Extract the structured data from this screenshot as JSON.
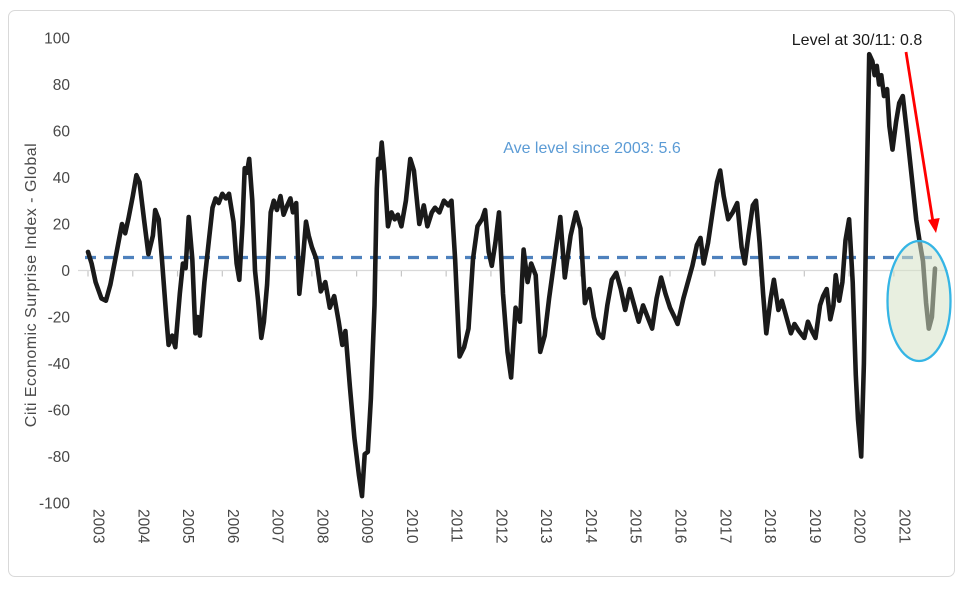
{
  "figure": {
    "background": "#FFFFFF",
    "border_color": "#D9D9D9"
  },
  "annotations": {
    "level_label": "Level at 30/11: 0.8",
    "level_label_color": "#1A1A1A",
    "avg_label": "Ave level since 2003: 5.6",
    "avg_label_color": "#5B9BD5",
    "arrow_color": "#FF0000",
    "highlight_ellipse": {
      "stroke_color": "#35B5E5",
      "fill_color_rgba": "rgba(213,226,198,0.55)"
    }
  },
  "chart_data": {
    "type": "line",
    "title": "",
    "xlabel": "",
    "ylabel": "Citi Economic Surprise Index - Global",
    "ylim": [
      -100,
      100
    ],
    "xlim": [
      2003,
      2022
    ],
    "grid": "zero-line-only",
    "legend": "none",
    "y_ticks": [
      100,
      80,
      60,
      40,
      20,
      0,
      -20,
      -40,
      -60,
      -80,
      -100
    ],
    "x_ticks": [
      2003,
      2004,
      2005,
      2006,
      2007,
      2008,
      2009,
      2010,
      2011,
      2012,
      2013,
      2014,
      2015,
      2016,
      2017,
      2018,
      2019,
      2020,
      2021
    ],
    "average_line": {
      "label": "Ave level since 2003",
      "value": 5.6,
      "color": "#4E81BD",
      "style": "dashed"
    },
    "final_point": {
      "date": "30/11",
      "value": 0.8
    },
    "series": [
      {
        "name": "Citi Economic Surprise Index - Global",
        "color": "#1A1A1A",
        "points": [
          [
            2003.0,
            8
          ],
          [
            2003.08,
            3
          ],
          [
            2003.17,
            -5
          ],
          [
            2003.3,
            -12
          ],
          [
            2003.4,
            -13
          ],
          [
            2003.5,
            -6
          ],
          [
            2003.6,
            4
          ],
          [
            2003.7,
            14
          ],
          [
            2003.76,
            20
          ],
          [
            2003.83,
            16
          ],
          [
            2003.9,
            22
          ],
          [
            2004.0,
            32
          ],
          [
            2004.08,
            41
          ],
          [
            2004.15,
            38
          ],
          [
            2004.25,
            22
          ],
          [
            2004.35,
            7
          ],
          [
            2004.45,
            15
          ],
          [
            2004.5,
            26
          ],
          [
            2004.58,
            22
          ],
          [
            2004.65,
            5
          ],
          [
            2004.75,
            -20
          ],
          [
            2004.8,
            -32
          ],
          [
            2004.88,
            -28
          ],
          [
            2004.95,
            -33
          ],
          [
            2005.05,
            -10
          ],
          [
            2005.12,
            3
          ],
          [
            2005.18,
            1
          ],
          [
            2005.25,
            23
          ],
          [
            2005.33,
            5
          ],
          [
            2005.4,
            -27
          ],
          [
            2005.45,
            -20
          ],
          [
            2005.5,
            -28
          ],
          [
            2005.6,
            -5
          ],
          [
            2005.7,
            13
          ],
          [
            2005.78,
            27
          ],
          [
            2005.85,
            31
          ],
          [
            2005.92,
            29
          ],
          [
            2006.0,
            33
          ],
          [
            2006.08,
            31
          ],
          [
            2006.15,
            33
          ],
          [
            2006.25,
            21
          ],
          [
            2006.32,
            3
          ],
          [
            2006.38,
            -4
          ],
          [
            2006.45,
            20
          ],
          [
            2006.5,
            44
          ],
          [
            2006.55,
            42
          ],
          [
            2006.6,
            48
          ],
          [
            2006.67,
            30
          ],
          [
            2006.73,
            0
          ],
          [
            2006.8,
            -13
          ],
          [
            2006.87,
            -29
          ],
          [
            2006.93,
            -22
          ],
          [
            2007.0,
            -6
          ],
          [
            2007.08,
            25
          ],
          [
            2007.15,
            30
          ],
          [
            2007.22,
            26
          ],
          [
            2007.3,
            32
          ],
          [
            2007.37,
            24
          ],
          [
            2007.45,
            28
          ],
          [
            2007.52,
            31
          ],
          [
            2007.58,
            25
          ],
          [
            2007.65,
            29
          ],
          [
            2007.72,
            -10
          ],
          [
            2007.8,
            5
          ],
          [
            2007.87,
            21
          ],
          [
            2007.93,
            15
          ],
          [
            2008.0,
            10
          ],
          [
            2008.1,
            5
          ],
          [
            2008.2,
            -9
          ],
          [
            2008.3,
            -5
          ],
          [
            2008.4,
            -16
          ],
          [
            2008.5,
            -11
          ],
          [
            2008.6,
            -22
          ],
          [
            2008.68,
            -32
          ],
          [
            2008.75,
            -26
          ],
          [
            2008.85,
            -50
          ],
          [
            2008.95,
            -72
          ],
          [
            2009.05,
            -88
          ],
          [
            2009.12,
            -97
          ],
          [
            2009.18,
            -79
          ],
          [
            2009.25,
            -78
          ],
          [
            2009.32,
            -55
          ],
          [
            2009.4,
            -15
          ],
          [
            2009.45,
            35
          ],
          [
            2009.48,
            48
          ],
          [
            2009.52,
            44
          ],
          [
            2009.56,
            55
          ],
          [
            2009.62,
            42
          ],
          [
            2009.7,
            19
          ],
          [
            2009.78,
            25
          ],
          [
            2009.85,
            22
          ],
          [
            2009.92,
            24
          ],
          [
            2010.0,
            19
          ],
          [
            2010.1,
            30
          ],
          [
            2010.2,
            48
          ],
          [
            2010.28,
            43
          ],
          [
            2010.4,
            20
          ],
          [
            2010.5,
            28
          ],
          [
            2010.58,
            19
          ],
          [
            2010.68,
            25
          ],
          [
            2010.75,
            27
          ],
          [
            2010.85,
            25
          ],
          [
            2010.95,
            30
          ],
          [
            2011.05,
            28
          ],
          [
            2011.12,
            30
          ],
          [
            2011.2,
            5
          ],
          [
            2011.3,
            -37
          ],
          [
            2011.4,
            -33
          ],
          [
            2011.5,
            -25
          ],
          [
            2011.6,
            5
          ],
          [
            2011.7,
            19
          ],
          [
            2011.8,
            22
          ],
          [
            2011.87,
            26
          ],
          [
            2011.95,
            8
          ],
          [
            2012.02,
            2
          ],
          [
            2012.1,
            12
          ],
          [
            2012.18,
            25
          ],
          [
            2012.27,
            -10
          ],
          [
            2012.37,
            -35
          ],
          [
            2012.45,
            -46
          ],
          [
            2012.55,
            -16
          ],
          [
            2012.65,
            -22
          ],
          [
            2012.73,
            9
          ],
          [
            2012.82,
            -5
          ],
          [
            2012.9,
            3
          ],
          [
            2013.0,
            -2
          ],
          [
            2013.1,
            -35
          ],
          [
            2013.2,
            -28
          ],
          [
            2013.3,
            -12
          ],
          [
            2013.42,
            5
          ],
          [
            2013.55,
            23
          ],
          [
            2013.65,
            -3
          ],
          [
            2013.78,
            15
          ],
          [
            2013.9,
            25
          ],
          [
            2014.0,
            18
          ],
          [
            2014.1,
            -14
          ],
          [
            2014.2,
            -8
          ],
          [
            2014.3,
            -20
          ],
          [
            2014.4,
            -27
          ],
          [
            2014.5,
            -29
          ],
          [
            2014.6,
            -15
          ],
          [
            2014.7,
            -4
          ],
          [
            2014.8,
            -1
          ],
          [
            2014.9,
            -8
          ],
          [
            2015.0,
            -17
          ],
          [
            2015.1,
            -8
          ],
          [
            2015.2,
            -15
          ],
          [
            2015.3,
            -22
          ],
          [
            2015.4,
            -15
          ],
          [
            2015.5,
            -20
          ],
          [
            2015.6,
            -25
          ],
          [
            2015.7,
            -12
          ],
          [
            2015.8,
            -3
          ],
          [
            2015.9,
            -10
          ],
          [
            2016.0,
            -16
          ],
          [
            2016.1,
            -20
          ],
          [
            2016.17,
            -23
          ],
          [
            2016.3,
            -12
          ],
          [
            2016.4,
            -5
          ],
          [
            2016.5,
            2
          ],
          [
            2016.6,
            11
          ],
          [
            2016.68,
            14
          ],
          [
            2016.75,
            3
          ],
          [
            2016.85,
            12
          ],
          [
            2016.95,
            25
          ],
          [
            2017.05,
            38
          ],
          [
            2017.12,
            43
          ],
          [
            2017.2,
            32
          ],
          [
            2017.3,
            22
          ],
          [
            2017.4,
            25
          ],
          [
            2017.5,
            29
          ],
          [
            2017.6,
            10
          ],
          [
            2017.67,
            3
          ],
          [
            2017.75,
            15
          ],
          [
            2017.85,
            28
          ],
          [
            2017.92,
            30
          ],
          [
            2018.0,
            12
          ],
          [
            2018.08,
            -10
          ],
          [
            2018.15,
            -27
          ],
          [
            2018.25,
            -12
          ],
          [
            2018.32,
            -4
          ],
          [
            2018.42,
            -17
          ],
          [
            2018.5,
            -13
          ],
          [
            2018.6,
            -20
          ],
          [
            2018.7,
            -27
          ],
          [
            2018.78,
            -23
          ],
          [
            2018.88,
            -26
          ],
          [
            2019.0,
            -29
          ],
          [
            2019.08,
            -22
          ],
          [
            2019.17,
            -26
          ],
          [
            2019.25,
            -29
          ],
          [
            2019.35,
            -15
          ],
          [
            2019.42,
            -11
          ],
          [
            2019.5,
            -8
          ],
          [
            2019.58,
            -21
          ],
          [
            2019.65,
            -15
          ],
          [
            2019.7,
            -2
          ],
          [
            2019.78,
            -13
          ],
          [
            2019.85,
            -5
          ],
          [
            2019.92,
            13
          ],
          [
            2020.0,
            22
          ],
          [
            2020.08,
            -5
          ],
          [
            2020.15,
            -45
          ],
          [
            2020.2,
            -64
          ],
          [
            2020.27,
            -80
          ],
          [
            2020.33,
            -40
          ],
          [
            2020.38,
            20
          ],
          [
            2020.45,
            93
          ],
          [
            2020.52,
            90
          ],
          [
            2020.57,
            84
          ],
          [
            2020.62,
            88
          ],
          [
            2020.67,
            80
          ],
          [
            2020.72,
            84
          ],
          [
            2020.78,
            75
          ],
          [
            2020.85,
            78
          ],
          [
            2020.9,
            62
          ],
          [
            2020.97,
            52
          ],
          [
            2021.05,
            64
          ],
          [
            2021.12,
            72
          ],
          [
            2021.2,
            75
          ],
          [
            2021.3,
            58
          ],
          [
            2021.4,
            40
          ],
          [
            2021.5,
            22
          ],
          [
            2021.58,
            12
          ],
          [
            2021.65,
            4
          ],
          [
            2021.72,
            -14
          ],
          [
            2021.78,
            -25
          ],
          [
            2021.85,
            -20
          ],
          [
            2021.92,
            0.8
          ]
        ]
      }
    ]
  }
}
